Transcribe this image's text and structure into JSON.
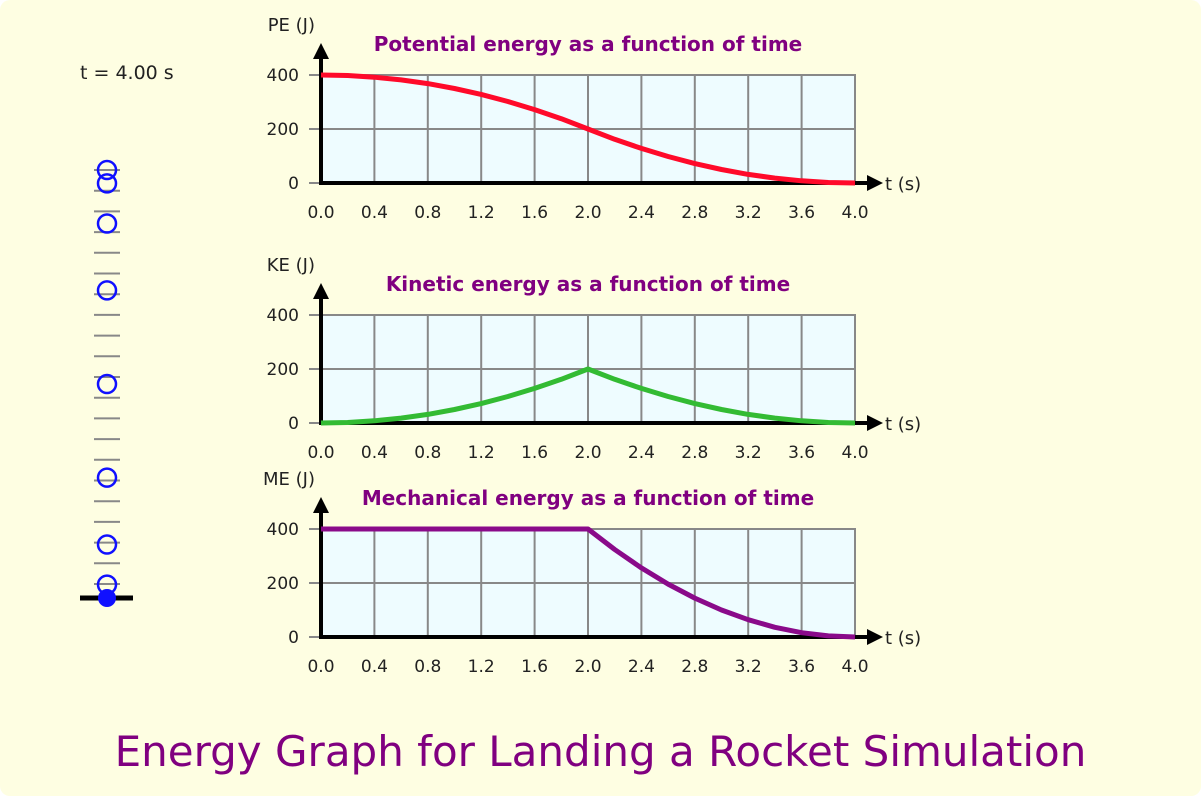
{
  "time_readout": "t = 4.00 s",
  "main_title": "Energy Graph for Landing a Rocket Simulation",
  "rocket_track": {
    "marker_interval_s": 0.5,
    "past_heights_J": [
      400,
      387.5,
      350,
      287.5,
      200,
      112.5,
      50,
      12.5
    ],
    "current_height_J": 0,
    "marker_color": "#1010ff"
  },
  "chart_data": [
    {
      "type": "line",
      "title": "Potential energy as a function of time",
      "ylabel": "PE (J)",
      "xlabel": "t (s)",
      "xlim": [
        0,
        4
      ],
      "ylim": [
        0,
        400
      ],
      "grid": true,
      "xticks": [
        "0.0",
        "0.4",
        "0.8",
        "1.2",
        "1.6",
        "2.0",
        "2.4",
        "2.8",
        "3.2",
        "3.6",
        "4.0"
      ],
      "yticks": [
        "0",
        "200",
        "400"
      ],
      "color": "#ff0a2a",
      "x": [
        0,
        0.2,
        0.4,
        0.6,
        0.8,
        1.0,
        1.2,
        1.4,
        1.6,
        1.8,
        2.0,
        2.2,
        2.4,
        2.6,
        2.8,
        3.0,
        3.2,
        3.4,
        3.6,
        3.8,
        4.0
      ],
      "y": [
        400,
        398,
        392,
        382,
        368,
        350,
        328,
        302,
        272,
        238,
        200,
        162,
        128,
        98,
        72,
        50,
        32,
        18,
        8,
        2,
        0
      ]
    },
    {
      "type": "line",
      "title": "Kinetic energy as a function of time",
      "ylabel": "KE (J)",
      "xlabel": "t (s)",
      "xlim": [
        0,
        4
      ],
      "ylim": [
        0,
        400
      ],
      "grid": true,
      "xticks": [
        "0.0",
        "0.4",
        "0.8",
        "1.2",
        "1.6",
        "2.0",
        "2.4",
        "2.8",
        "3.2",
        "3.6",
        "4.0"
      ],
      "yticks": [
        "0",
        "200",
        "400"
      ],
      "color": "#33bb33",
      "x": [
        0,
        0.2,
        0.4,
        0.6,
        0.8,
        1.0,
        1.2,
        1.4,
        1.6,
        1.8,
        2.0,
        2.2,
        2.4,
        2.6,
        2.8,
        3.0,
        3.2,
        3.4,
        3.6,
        3.8,
        4.0
      ],
      "y": [
        0,
        2,
        8,
        18,
        32,
        50,
        72,
        98,
        128,
        162,
        200,
        162,
        128,
        98,
        72,
        50,
        32,
        18,
        8,
        2,
        0
      ]
    },
    {
      "type": "line",
      "title": "Mechanical energy as a function of time",
      "ylabel": "ME (J)",
      "xlabel": "t (s)",
      "xlim": [
        0,
        4
      ],
      "ylim": [
        0,
        400
      ],
      "grid": true,
      "xticks": [
        "0.0",
        "0.4",
        "0.8",
        "1.2",
        "1.6",
        "2.0",
        "2.4",
        "2.8",
        "3.2",
        "3.6",
        "4.0"
      ],
      "yticks": [
        "0",
        "200",
        "400"
      ],
      "color": "#8a0a8a",
      "x": [
        0,
        0.2,
        0.4,
        0.6,
        0.8,
        1.0,
        1.2,
        1.4,
        1.6,
        1.8,
        2.0,
        2.2,
        2.4,
        2.6,
        2.8,
        3.0,
        3.2,
        3.4,
        3.6,
        3.8,
        4.0
      ],
      "y": [
        400,
        400,
        400,
        400,
        400,
        400,
        400,
        400,
        400,
        400,
        400,
        324,
        256,
        196,
        144,
        100,
        64,
        36,
        16,
        4,
        0
      ]
    }
  ]
}
